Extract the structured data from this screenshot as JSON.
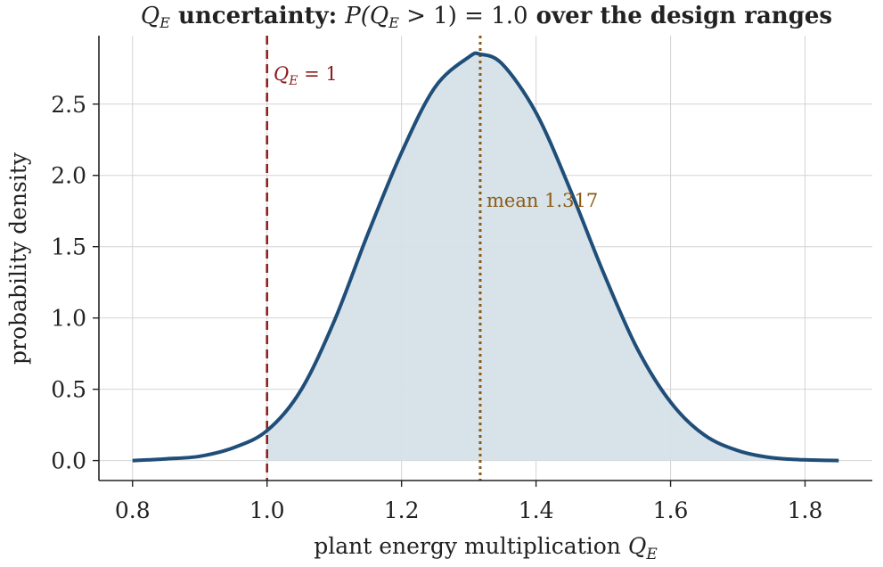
{
  "chart_data": {
    "type": "area",
    "title": {
      "var": "Q",
      "var_sub": "E",
      "bold_text": " uncertainty: ",
      "prob_open": "P(",
      "prob_var": "Q",
      "prob_sub": "E",
      "prob_rest": " > 1) = 1.0",
      "tail": " over the design ranges"
    },
    "xlabel": {
      "text": "plant energy multiplication  ",
      "var": "Q",
      "sub": "E"
    },
    "ylabel": "probability density",
    "xlim": [
      0.75,
      1.9
    ],
    "ylim": [
      -0.14,
      2.98
    ],
    "xticks": [
      0.8,
      1.0,
      1.2,
      1.4,
      1.6,
      1.8
    ],
    "xtick_labels": [
      "0.8",
      "1.0",
      "1.2",
      "1.4",
      "1.6",
      "1.8"
    ],
    "yticks": [
      0.0,
      0.5,
      1.0,
      1.5,
      2.0,
      2.5
    ],
    "ytick_labels": [
      "0.0",
      "0.5",
      "1.0",
      "1.5",
      "2.0",
      "2.5"
    ],
    "grid": true,
    "series": [
      {
        "x": [
          0.8,
          0.85,
          0.9,
          0.95,
          1.0,
          1.05,
          1.1,
          1.15,
          1.2,
          1.25,
          1.3,
          1.317,
          1.35,
          1.4,
          1.45,
          1.5,
          1.55,
          1.6,
          1.65,
          1.7,
          1.75,
          1.8,
          1.85
        ],
        "y": [
          0.0,
          0.012,
          0.03,
          0.09,
          0.21,
          0.49,
          0.98,
          1.59,
          2.16,
          2.62,
          2.83,
          2.85,
          2.78,
          2.44,
          1.91,
          1.32,
          0.79,
          0.41,
          0.18,
          0.07,
          0.02,
          0.005,
          0.0
        ],
        "fill_from_x": 1.0
      }
    ],
    "annotations": [
      {
        "type": "vline",
        "x": 1.0,
        "style": "dashed",
        "label_var": "Q",
        "label_sub": "E",
        "label_rest": " = 1"
      },
      {
        "type": "vline",
        "x": 1.317,
        "style": "dotted",
        "label": "mean 1.317"
      }
    ],
    "colors": {
      "curve": "#1f4e79",
      "fill": "#d6e0e8",
      "threshold": "#8b1a1a",
      "mean": "#8b5a14",
      "axis": "#222222",
      "grid": "#d4d4d4"
    }
  }
}
